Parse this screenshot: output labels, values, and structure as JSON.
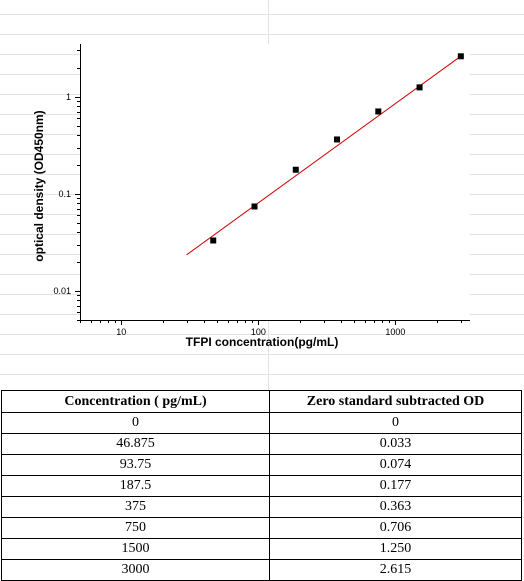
{
  "chart_data": {
    "type": "scatter",
    "xlabel": "TFPI  concentration(pg/mL)",
    "ylabel": "optical density (OD450nm)",
    "x_scale": "log",
    "y_scale": "log",
    "xlim": [
      5,
      3500
    ],
    "ylim": [
      0.005,
      3.5
    ],
    "x_ticks": [
      {
        "value": 10,
        "label": "10"
      },
      {
        "value": 100,
        "label": "100"
      },
      {
        "value": 1000,
        "label": "1000"
      }
    ],
    "y_ticks": [
      {
        "value": 0.01,
        "label": "0.01"
      },
      {
        "value": 0.1,
        "label": "0.1"
      },
      {
        "value": 1,
        "label": "1"
      }
    ],
    "series": [
      {
        "x": [
          46.875,
          93.75,
          187.5,
          375,
          750,
          1500,
          3000
        ],
        "y": [
          0.033,
          0.074,
          0.177,
          0.363,
          0.706,
          1.25,
          2.615
        ],
        "color": "#000000"
      }
    ],
    "fit_line": {
      "x": [
        30,
        3000
      ],
      "y": [
        0.0235,
        2.62
      ],
      "color": "#d00000"
    },
    "grid": true
  },
  "table": {
    "headers": [
      "Concentration ( pg/mL)",
      "Zero standard subtracted OD"
    ],
    "rows": [
      [
        "0",
        "0"
      ],
      [
        "46.875",
        "0.033"
      ],
      [
        "93.75",
        "0.074"
      ],
      [
        "187.5",
        "0.177"
      ],
      [
        "375",
        "0.363"
      ],
      [
        "750",
        "0.706"
      ],
      [
        "1500",
        "1.250"
      ],
      [
        "3000",
        "2.615"
      ]
    ]
  }
}
